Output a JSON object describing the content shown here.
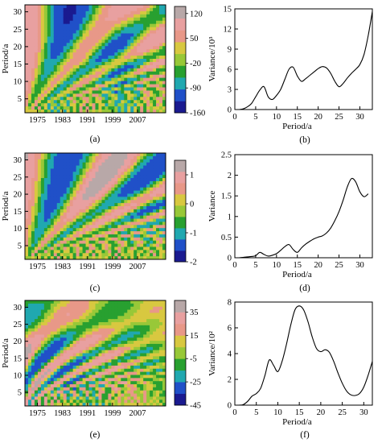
{
  "figure": {
    "panels": [
      {
        "id": "a",
        "caption": "(a)",
        "type": "heatmap",
        "ylabel": "Period/a",
        "x_ticks": [
          "1975",
          "1983",
          "1991",
          "1999",
          "2007"
        ],
        "x_tick_values": [
          1975,
          1983,
          1991,
          1999,
          2007
        ],
        "xlim": [
          1971,
          2016
        ],
        "y_ticks": [
          "5",
          "10",
          "15",
          "20",
          "25",
          "30"
        ],
        "ylim": [
          1,
          32
        ],
        "colorbar_ticks": [
          "120",
          "50",
          "-20",
          "-90",
          "-160"
        ],
        "colorbar_range": [
          -160,
          140
        ],
        "colors": [
          "#1a1a90",
          "#2050c8",
          "#20a8b0",
          "#28a030",
          "#98c838",
          "#d8c840",
          "#e89888",
          "#e8a0a0",
          "#b8a8a8"
        ]
      },
      {
        "id": "b",
        "caption": "(b)",
        "type": "line",
        "xlabel": "Period/a",
        "ylabel": "Variance/10³",
        "x_ticks": [
          "0",
          "5",
          "10",
          "15",
          "20",
          "25",
          "30"
        ],
        "y_ticks": [
          "0",
          "3",
          "6",
          "9",
          "12",
          "15"
        ],
        "xlim": [
          0,
          33
        ],
        "ylim": [
          0,
          15
        ],
        "x": [
          1,
          2,
          3,
          4,
          5,
          6,
          7,
          8,
          9,
          10,
          11,
          12,
          13,
          14,
          15,
          16,
          17,
          18,
          19,
          20,
          21,
          22,
          23,
          24,
          25,
          26,
          27,
          28,
          29,
          30,
          31,
          32,
          33
        ],
        "y": [
          0,
          0.1,
          0.4,
          0.9,
          1.9,
          2.9,
          3.4,
          1.9,
          1.5,
          2.1,
          3.0,
          4.5,
          6.0,
          6.3,
          5.0,
          4.2,
          4.6,
          5.1,
          5.6,
          6.1,
          6.4,
          6.2,
          5.4,
          4.2,
          3.4,
          3.9,
          4.7,
          5.4,
          6.0,
          6.7,
          8.2,
          11.0,
          14.6
        ]
      },
      {
        "id": "c",
        "caption": "(c)",
        "type": "heatmap",
        "ylabel": "Period/a",
        "x_ticks": [
          "1975",
          "1983",
          "1991",
          "1999",
          "2007"
        ],
        "x_tick_values": [
          1975,
          1983,
          1991,
          1999,
          2007
        ],
        "xlim": [
          1971,
          2016
        ],
        "y_ticks": [
          "5",
          "10",
          "15",
          "20",
          "25",
          "30"
        ],
        "ylim": [
          1,
          32
        ],
        "colorbar_ticks": [
          "1",
          "0",
          "-1",
          "-2"
        ],
        "colorbar_range": [
          -2,
          1.5
        ],
        "colors": [
          "#1a1a90",
          "#2050c8",
          "#20a8b0",
          "#28a030",
          "#98c838",
          "#d8c840",
          "#e89888",
          "#e8a0a0",
          "#b8a8a8"
        ]
      },
      {
        "id": "d",
        "caption": "(d)",
        "type": "line",
        "xlabel": "Period/a",
        "ylabel": "Variance",
        "x_ticks": [
          "0",
          "5",
          "10",
          "15",
          "20",
          "25",
          "30"
        ],
        "y_ticks": [
          "0",
          "0.5",
          "1",
          "1.5",
          "2",
          "2.5"
        ],
        "xlim": [
          0,
          33
        ],
        "ylim": [
          0,
          2.5
        ],
        "x": [
          1,
          2,
          3,
          4,
          5,
          6,
          7,
          8,
          9,
          10,
          11,
          12,
          13,
          14,
          15,
          16,
          17,
          18,
          19,
          20,
          21,
          22,
          23,
          24,
          25,
          26,
          27,
          28,
          29,
          30,
          31,
          32
        ],
        "y": [
          0,
          0.01,
          0.02,
          0.03,
          0.05,
          0.13,
          0.08,
          0.04,
          0.06,
          0.1,
          0.18,
          0.27,
          0.32,
          0.2,
          0.13,
          0.24,
          0.33,
          0.4,
          0.46,
          0.5,
          0.53,
          0.6,
          0.72,
          0.9,
          1.12,
          1.4,
          1.72,
          1.92,
          1.84,
          1.6,
          1.48,
          1.55
        ]
      },
      {
        "id": "e",
        "caption": "(e)",
        "type": "heatmap",
        "ylabel": "Period/a",
        "x_ticks": [
          "1975",
          "1983",
          "1991",
          "1999",
          "2007"
        ],
        "x_tick_values": [
          1975,
          1983,
          1991,
          1999,
          2007
        ],
        "xlim": [
          1971,
          2016
        ],
        "y_ticks": [
          "5",
          "10",
          "15",
          "20",
          "25",
          "30"
        ],
        "ylim": [
          1,
          32
        ],
        "colorbar_ticks": [
          "35",
          "15",
          "-5",
          "-25",
          "-45"
        ],
        "colorbar_range": [
          -45,
          45
        ],
        "colors": [
          "#1a1a90",
          "#2050c8",
          "#20a8b0",
          "#28a030",
          "#98c838",
          "#d8c840",
          "#e89888",
          "#e8a0a0",
          "#b8a8a8"
        ]
      },
      {
        "id": "f",
        "caption": "(f)",
        "type": "line",
        "xlabel": "Period/a",
        "ylabel": "Variance/10²",
        "x_ticks": [
          "0",
          "5",
          "10",
          "15",
          "20",
          "25",
          "30"
        ],
        "y_ticks": [
          "0",
          "2",
          "4",
          "6",
          "8"
        ],
        "xlim": [
          0,
          32
        ],
        "ylim": [
          0,
          8
        ],
        "x": [
          1,
          2,
          3,
          4,
          5,
          6,
          7,
          8,
          9,
          10,
          11,
          12,
          13,
          14,
          15,
          16,
          17,
          18,
          19,
          20,
          21,
          22,
          23,
          24,
          25,
          26,
          27,
          28,
          29,
          30,
          31,
          32
        ],
        "y": [
          0,
          0.05,
          0.3,
          0.7,
          0.9,
          1.3,
          2.3,
          3.5,
          3.1,
          2.6,
          3.4,
          4.7,
          6.2,
          7.4,
          7.7,
          7.4,
          6.5,
          5.3,
          4.4,
          4.15,
          4.3,
          4.1,
          3.4,
          2.5,
          1.7,
          1.1,
          0.8,
          0.75,
          0.9,
          1.4,
          2.3,
          3.4
        ]
      }
    ]
  }
}
